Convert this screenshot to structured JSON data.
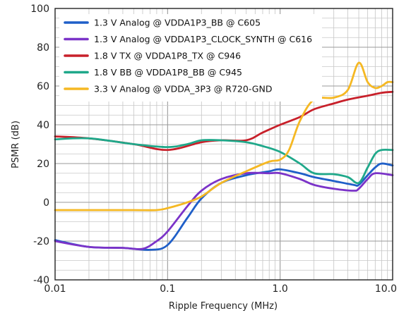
{
  "chart_data": {
    "type": "line",
    "title": "",
    "xlabel": "Ripple Frequency (MHz)",
    "ylabel": "PSMR (dB)",
    "xscale": "log",
    "xlim": [
      0.01,
      10.0
    ],
    "ylim": [
      -40,
      100
    ],
    "grid": true,
    "legend_position": "top-left",
    "x_ticks": [
      {
        "value": 0.01,
        "label": "0.01"
      },
      {
        "value": 0.1,
        "label": "0.1"
      },
      {
        "value": 1.0,
        "label": "1.0"
      },
      {
        "value": 10.0,
        "label": "10.0"
      }
    ],
    "y_ticks": [
      {
        "value": -40,
        "label": "-40"
      },
      {
        "value": -20,
        "label": "-20"
      },
      {
        "value": 0,
        "label": "0"
      },
      {
        "value": 20,
        "label": "20"
      },
      {
        "value": 40,
        "label": "40"
      },
      {
        "value": 60,
        "label": "60"
      },
      {
        "value": 80,
        "label": "80"
      },
      {
        "value": 100,
        "label": "100"
      }
    ],
    "series": [
      {
        "name": "1.3 V Analog @ VDDA1P3_BB @ C605",
        "color": "#1f5fc8",
        "points": [
          [
            0.01,
            -19.5
          ],
          [
            0.02,
            -23
          ],
          [
            0.04,
            -23.5
          ],
          [
            0.07,
            -24.5
          ],
          [
            0.1,
            -22
          ],
          [
            0.15,
            -8
          ],
          [
            0.2,
            2
          ],
          [
            0.3,
            10
          ],
          [
            0.5,
            14
          ],
          [
            0.8,
            16
          ],
          [
            1.0,
            17
          ],
          [
            1.5,
            15
          ],
          [
            2.0,
            13
          ],
          [
            3.0,
            11
          ],
          [
            4.5,
            9
          ],
          [
            5.0,
            9
          ],
          [
            6.0,
            14
          ],
          [
            7.0,
            18
          ],
          [
            8.0,
            20
          ],
          [
            10.0,
            19
          ]
        ]
      },
      {
        "name": "1.3 V Analog @ VDDA1P3_CLOCK_SYNTH @ C616",
        "color": "#7b33c8",
        "points": [
          [
            0.01,
            -20
          ],
          [
            0.02,
            -23
          ],
          [
            0.04,
            -23.5
          ],
          [
            0.06,
            -24
          ],
          [
            0.08,
            -20
          ],
          [
            0.1,
            -15
          ],
          [
            0.15,
            -2
          ],
          [
            0.2,
            6
          ],
          [
            0.3,
            12
          ],
          [
            0.5,
            15
          ],
          [
            0.8,
            15
          ],
          [
            1.0,
            15
          ],
          [
            1.5,
            12
          ],
          [
            2.0,
            9
          ],
          [
            3.0,
            7
          ],
          [
            4.5,
            6
          ],
          [
            5.0,
            7
          ],
          [
            6.0,
            12
          ],
          [
            7.0,
            15
          ],
          [
            10.0,
            14
          ]
        ]
      },
      {
        "name": "1.8 V TX @ VDDA1P8_TX @ C946",
        "color": "#c8202a",
        "points": [
          [
            0.01,
            34
          ],
          [
            0.02,
            33
          ],
          [
            0.05,
            30
          ],
          [
            0.1,
            27
          ],
          [
            0.2,
            31
          ],
          [
            0.3,
            32
          ],
          [
            0.5,
            32
          ],
          [
            0.7,
            36
          ],
          [
            1.0,
            40
          ],
          [
            1.5,
            44
          ],
          [
            2.0,
            48
          ],
          [
            3.0,
            51
          ],
          [
            4.0,
            53
          ],
          [
            6.0,
            55
          ],
          [
            8.0,
            56.5
          ],
          [
            10.0,
            57
          ]
        ]
      },
      {
        "name": "1.8 V BB @ VDDA1P8_BB @ C945",
        "color": "#1fa88a",
        "points": [
          [
            0.01,
            32.5
          ],
          [
            0.02,
            33
          ],
          [
            0.05,
            30
          ],
          [
            0.1,
            28.5
          ],
          [
            0.15,
            30
          ],
          [
            0.2,
            32
          ],
          [
            0.3,
            32
          ],
          [
            0.5,
            31
          ],
          [
            0.7,
            29
          ],
          [
            1.0,
            26
          ],
          [
            1.5,
            20
          ],
          [
            2.0,
            15
          ],
          [
            3.0,
            14.5
          ],
          [
            4.0,
            13
          ],
          [
            5.0,
            10
          ],
          [
            6.0,
            18
          ],
          [
            7.0,
            25
          ],
          [
            8.0,
            27
          ],
          [
            10.0,
            27
          ]
        ]
      },
      {
        "name": "3.3 V Analog @ VDDA_3P3 @ R720-GND",
        "color": "#f5b823",
        "points": [
          [
            0.01,
            -4
          ],
          [
            0.02,
            -4
          ],
          [
            0.05,
            -4
          ],
          [
            0.08,
            -4
          ],
          [
            0.1,
            -3
          ],
          [
            0.15,
            0
          ],
          [
            0.2,
            3
          ],
          [
            0.3,
            10
          ],
          [
            0.5,
            16
          ],
          [
            0.8,
            21
          ],
          [
            1.0,
            22
          ],
          [
            1.2,
            27
          ],
          [
            1.5,
            42
          ],
          [
            2.0,
            53
          ],
          [
            3.0,
            54
          ],
          [
            4.0,
            58
          ],
          [
            5.0,
            72
          ],
          [
            6.0,
            62
          ],
          [
            7.0,
            59
          ],
          [
            8.0,
            60
          ],
          [
            9.0,
            62
          ],
          [
            10.0,
            62
          ]
        ]
      }
    ]
  }
}
